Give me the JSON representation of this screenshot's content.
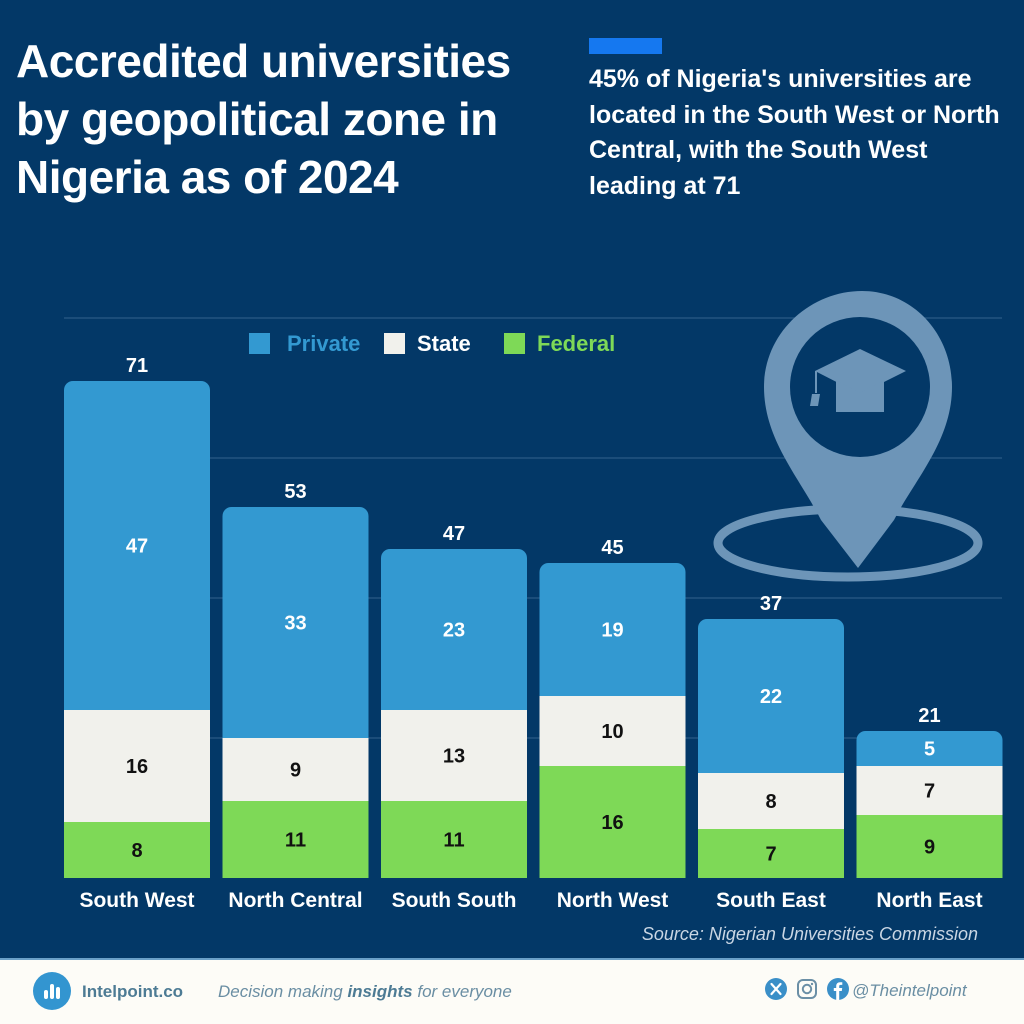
{
  "header": {
    "title": "Accredited universities by geopolitical zone in Nigeria as of 2024",
    "subtitle": "45% of Nigeria's universities are located in the South West or North Central, with the South West leading at 71"
  },
  "colors": {
    "background": "#033867",
    "private": "#3399d1",
    "state": "#f1f1ec",
    "federal": "#7ed957",
    "accent": "#1578f0",
    "icon": "#6d95b8",
    "gridline": "#2a5a86"
  },
  "chart_data": {
    "type": "bar",
    "stacked": true,
    "title": "Accredited universities by geopolitical zone in Nigeria as of 2024",
    "xlabel": "",
    "ylabel": "",
    "ylim": [
      0,
      80
    ],
    "grid": true,
    "legend_position": "top-center",
    "categories": [
      "South West",
      "North Central",
      "South South",
      "North West",
      "South East",
      "North East"
    ],
    "series": [
      {
        "name": "Federal",
        "values": [
          8,
          11,
          11,
          16,
          7,
          9
        ]
      },
      {
        "name": "State",
        "values": [
          16,
          9,
          13,
          10,
          8,
          7
        ]
      },
      {
        "name": "Private",
        "values": [
          47,
          33,
          23,
          19,
          22,
          5
        ]
      }
    ],
    "totals": [
      71,
      53,
      47,
      45,
      37,
      21
    ],
    "legend": [
      "Private",
      "State",
      "Federal"
    ]
  },
  "source": "Source: Nigerian Universities Commission",
  "footer": {
    "brand": "Intelpoint.co",
    "tagline_pre": "Decision making ",
    "tagline_bold": "insights",
    "tagline_post": " for everyone",
    "handle": "@Theintelpoint",
    "icons": [
      "x-icon",
      "instagram-icon",
      "facebook-icon"
    ]
  }
}
